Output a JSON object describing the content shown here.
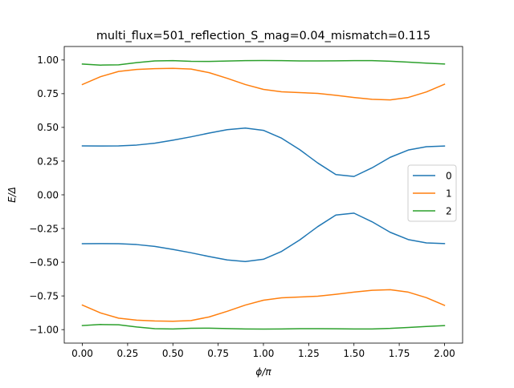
{
  "chart_data": {
    "type": "line",
    "title": "multi_flux=501_reflection_S_mag=0.04_mismatch=0.115",
    "xlabel": "ϕ/π",
    "ylabel": "E/Δ",
    "xlim": [
      -0.1,
      2.1
    ],
    "ylim": [
      -1.1,
      1.1
    ],
    "xticks": [
      0.0,
      0.25,
      0.5,
      0.75,
      1.0,
      1.25,
      1.5,
      1.75,
      2.0
    ],
    "xtick_labels": [
      "0.00",
      "0.25",
      "0.50",
      "0.75",
      "1.00",
      "1.25",
      "1.50",
      "1.75",
      "2.00"
    ],
    "yticks": [
      -1.0,
      -0.75,
      -0.5,
      -0.25,
      0.0,
      0.25,
      0.5,
      0.75,
      1.0
    ],
    "ytick_labels": [
      "−1.00",
      "−0.75",
      "−0.50",
      "−0.25",
      "0.00",
      "0.25",
      "0.50",
      "0.75",
      "1.00"
    ],
    "grid": false,
    "legend_position": "center-right",
    "x": [
      0.0,
      0.1,
      0.2,
      0.3,
      0.4,
      0.5,
      0.6,
      0.7,
      0.8,
      0.9,
      1.0,
      1.1,
      1.2,
      1.3,
      1.4,
      1.5,
      1.6,
      1.7,
      1.8,
      1.9,
      2.0
    ],
    "series": [
      {
        "name": "0",
        "color": "#1f77b4",
        "lines": [
          [
            0.363,
            0.362,
            0.363,
            0.369,
            0.383,
            0.405,
            0.43,
            0.458,
            0.483,
            0.495,
            0.478,
            0.42,
            0.335,
            0.236,
            0.15,
            0.136,
            0.2,
            0.278,
            0.332,
            0.357,
            0.362
          ],
          [
            -0.363,
            -0.362,
            -0.363,
            -0.369,
            -0.383,
            -0.405,
            -0.43,
            -0.458,
            -0.483,
            -0.495,
            -0.478,
            -0.42,
            -0.335,
            -0.236,
            -0.15,
            -0.136,
            -0.2,
            -0.278,
            -0.332,
            -0.357,
            -0.362
          ]
        ]
      },
      {
        "name": "1",
        "color": "#ff7f0e",
        "lines": [
          [
            0.818,
            0.876,
            0.915,
            0.93,
            0.936,
            0.938,
            0.933,
            0.906,
            0.864,
            0.818,
            0.782,
            0.764,
            0.758,
            0.752,
            0.738,
            0.722,
            0.708,
            0.704,
            0.722,
            0.763,
            0.82
          ],
          [
            -0.818,
            -0.876,
            -0.915,
            -0.93,
            -0.936,
            -0.938,
            -0.933,
            -0.906,
            -0.864,
            -0.818,
            -0.782,
            -0.764,
            -0.758,
            -0.752,
            -0.738,
            -0.722,
            -0.708,
            -0.704,
            -0.722,
            -0.763,
            -0.82
          ]
        ]
      },
      {
        "name": "2",
        "color": "#2ca02c",
        "lines": [
          [
            0.97,
            0.962,
            0.964,
            0.98,
            0.993,
            0.995,
            0.99,
            0.989,
            0.992,
            0.995,
            0.996,
            0.995,
            0.993,
            0.993,
            0.994,
            0.995,
            0.995,
            0.991,
            0.984,
            0.977,
            0.97
          ],
          [
            -0.97,
            -0.962,
            -0.964,
            -0.98,
            -0.993,
            -0.995,
            -0.99,
            -0.989,
            -0.992,
            -0.995,
            -0.996,
            -0.995,
            -0.993,
            -0.993,
            -0.994,
            -0.995,
            -0.995,
            -0.991,
            -0.984,
            -0.977,
            -0.97
          ]
        ]
      }
    ]
  }
}
